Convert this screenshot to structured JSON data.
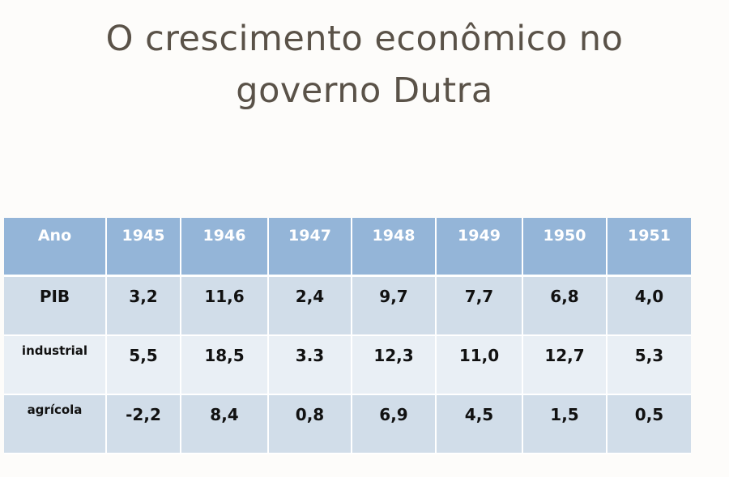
{
  "slide": {
    "title_line1": "O crescimento econômico no",
    "title_line2": "governo Dutra"
  },
  "table": {
    "header": [
      "Ano",
      "1945",
      "1946",
      "1947",
      "1948",
      "1949",
      "1950",
      "1951"
    ],
    "rows": [
      {
        "label": "PIB",
        "values": [
          "3,2",
          "11,6",
          "2,4",
          "9,7",
          "7,7",
          "6,8",
          "4,0"
        ]
      },
      {
        "label": "industrial",
        "values": [
          "5,5",
          "18,5",
          "3.3",
          "12,3",
          "11,0",
          "12,7",
          "5,3"
        ]
      },
      {
        "label": "agrícola",
        "values": [
          "-2,2",
          "8,4",
          "0,8",
          "6,9",
          "4,5",
          "1,5",
          "0,5"
        ]
      }
    ]
  },
  "colors": {
    "header_bg": "#94b5d8",
    "row_dark": "#d1dde9",
    "row_light": "#e9eff5",
    "title_text": "#5a5248"
  }
}
